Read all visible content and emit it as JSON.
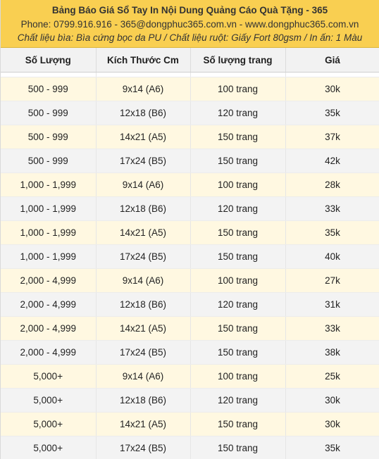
{
  "banner": {
    "title": "Bảng Báo Giá Sổ Tay In Nội Dung Quảng Cáo Quà Tặng - 365",
    "phone_line": "Phone: 0799.916.916 - 365@dongphuc365.com.vn - www.dongphuc365.com.vn",
    "material_line": "Chất liệu bìa: Bìa cứng bọc da PU / Chất liệu ruột: Giấy Fort 80gsm / In ấn: 1 Màu"
  },
  "table": {
    "headers": [
      "Số Lượng",
      "Kích Thước Cm",
      "Số lượng trang",
      "Giá"
    ],
    "rows": [
      [
        "500 - 999",
        "9x14 (A6)",
        "100 trang",
        "30k"
      ],
      [
        "500 - 999",
        "12x18 (B6)",
        "120 trang",
        "35k"
      ],
      [
        "500 - 999",
        "14x21 (A5)",
        "150 trang",
        "37k"
      ],
      [
        "500 - 999",
        "17x24 (B5)",
        "150 trang",
        "42k"
      ],
      [
        "1,000 - 1,999",
        "9x14 (A6)",
        "100 trang",
        "28k"
      ],
      [
        "1,000 - 1,999",
        "12x18 (B6)",
        "120 trang",
        "33k"
      ],
      [
        "1,000 - 1,999",
        "14x21 (A5)",
        "150 trang",
        "35k"
      ],
      [
        "1,000 - 1,999",
        "17x24 (B5)",
        "150 trang",
        "40k"
      ],
      [
        "2,000 - 4,999",
        "9x14 (A6)",
        "100 trang",
        "27k"
      ],
      [
        "2,000 - 4,999",
        "12x18 (B6)",
        "120 trang",
        "31k"
      ],
      [
        "2,000 - 4,999",
        "14x21 (A5)",
        "150 trang",
        "33k"
      ],
      [
        "2,000 - 4,999",
        "17x24 (B5)",
        "150 trang",
        "38k"
      ],
      [
        "5,000+",
        "9x14 (A6)",
        "100 trang",
        "25k"
      ],
      [
        "5,000+",
        "12x18 (B6)",
        "120 trang",
        "30k"
      ],
      [
        "5,000+",
        "14x21 (A5)",
        "150 trang",
        "30k"
      ],
      [
        "5,000+",
        "17x24 (B5)",
        "150 trang",
        "35k"
      ]
    ]
  }
}
